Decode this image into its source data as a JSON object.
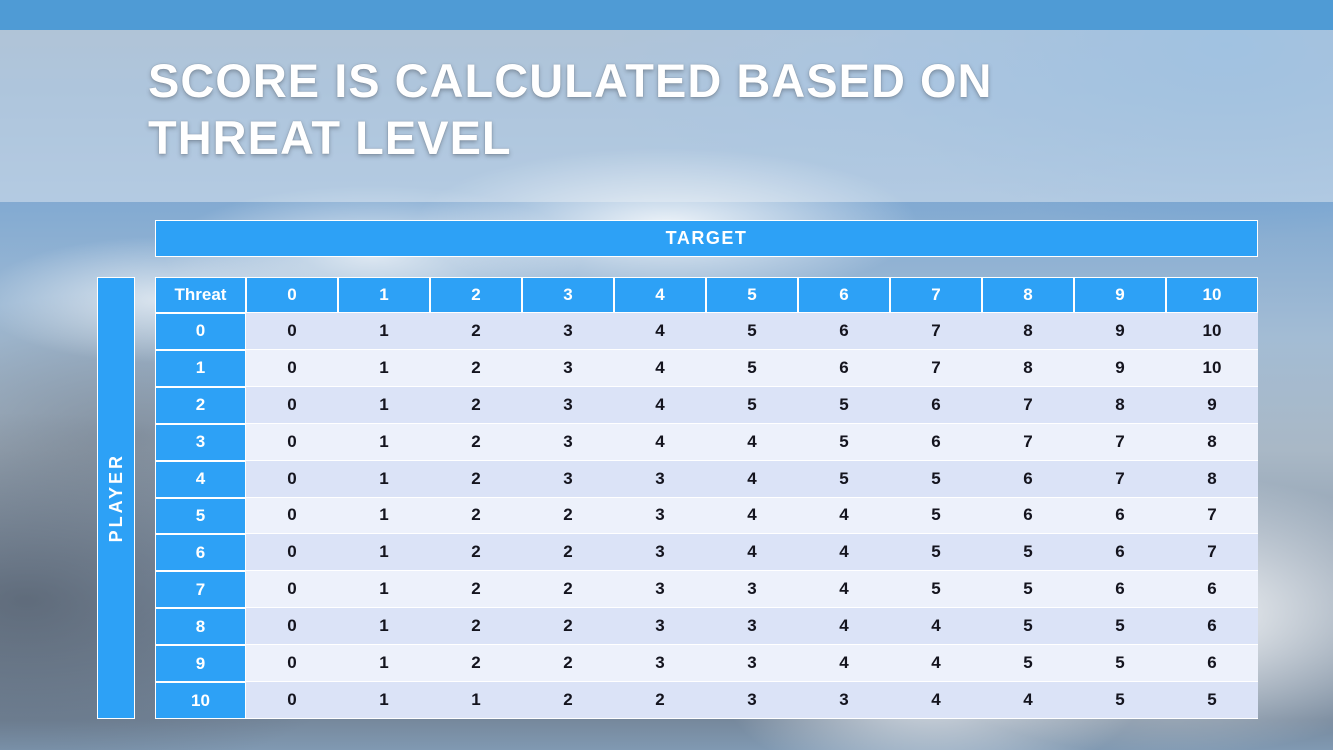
{
  "title": {
    "line1": "SCORE IS CALCULATED BASED ON",
    "line2": "THREAT LEVEL"
  },
  "chart_data": {
    "type": "table",
    "x_axis_label": "TARGET",
    "y_axis_label": "PLAYER",
    "corner_header": "Threat",
    "column_headers": [
      "0",
      "1",
      "2",
      "3",
      "4",
      "5",
      "6",
      "7",
      "8",
      "9",
      "10"
    ],
    "row_headers": [
      "0",
      "1",
      "2",
      "3",
      "4",
      "5",
      "6",
      "7",
      "8",
      "9",
      "10"
    ],
    "rows": [
      [
        0,
        1,
        2,
        3,
        4,
        5,
        6,
        7,
        8,
        9,
        10
      ],
      [
        0,
        1,
        2,
        3,
        4,
        5,
        6,
        7,
        8,
        9,
        10
      ],
      [
        0,
        1,
        2,
        3,
        4,
        5,
        5,
        6,
        7,
        8,
        9
      ],
      [
        0,
        1,
        2,
        3,
        4,
        4,
        5,
        6,
        7,
        7,
        8
      ],
      [
        0,
        1,
        2,
        3,
        3,
        4,
        5,
        5,
        6,
        7,
        8
      ],
      [
        0,
        1,
        2,
        2,
        3,
        4,
        4,
        5,
        6,
        6,
        7
      ],
      [
        0,
        1,
        2,
        2,
        3,
        4,
        4,
        5,
        5,
        6,
        7
      ],
      [
        0,
        1,
        2,
        2,
        3,
        3,
        4,
        5,
        5,
        6,
        6
      ],
      [
        0,
        1,
        2,
        2,
        3,
        3,
        4,
        4,
        5,
        5,
        6
      ],
      [
        0,
        1,
        2,
        2,
        3,
        3,
        4,
        4,
        5,
        5,
        6
      ],
      [
        0,
        1,
        1,
        2,
        2,
        3,
        3,
        4,
        4,
        5,
        5
      ]
    ]
  },
  "colors": {
    "top_strip_blue": "#4f9bd5",
    "table_blue": "#2da1f6",
    "row_band_dark": "#dbe3f7",
    "row_band_light": "#edf1fb",
    "cell_text": "#14141e",
    "header_text": "#ffffff",
    "title_text": "#ffffff"
  }
}
